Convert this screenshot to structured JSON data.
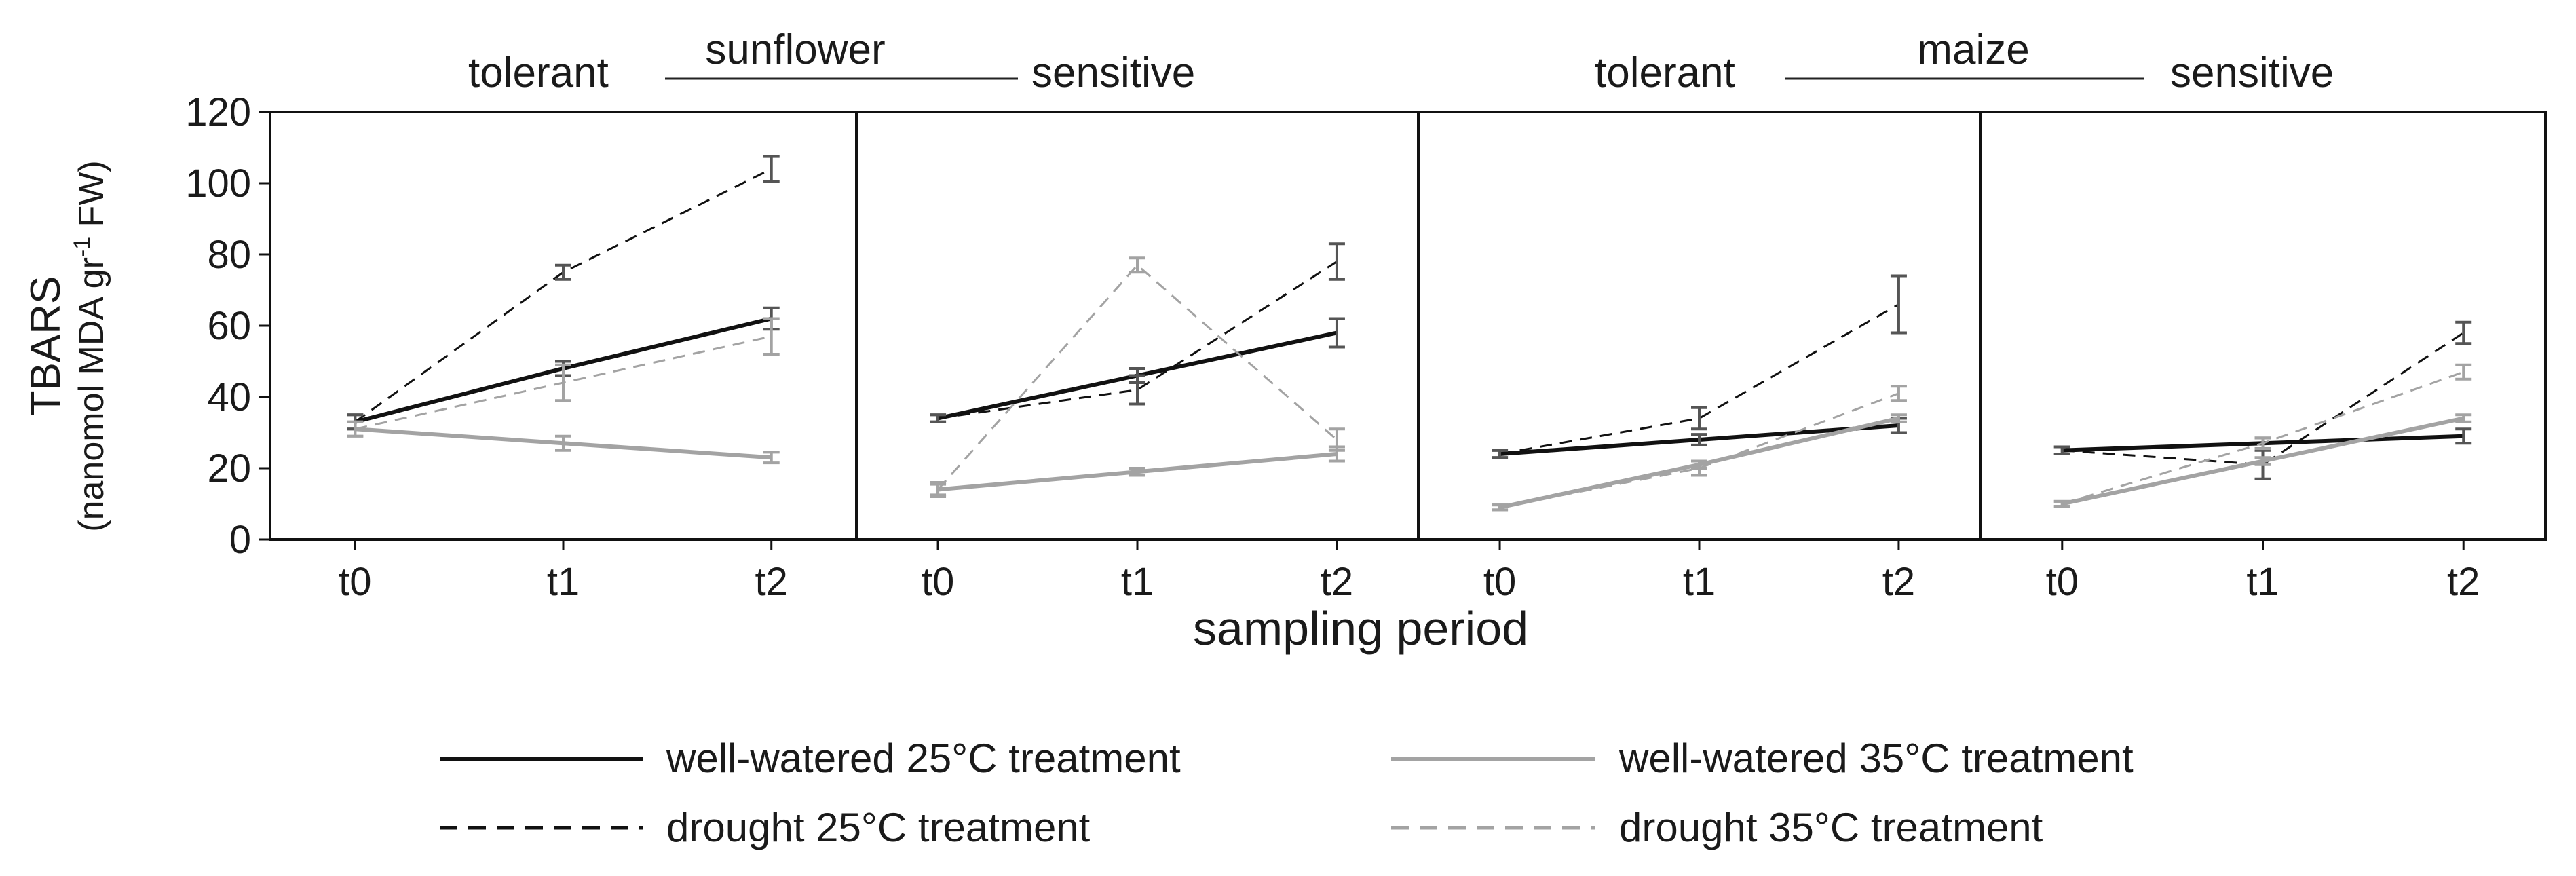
{
  "groups": [
    {
      "name": "sunflower",
      "left_label": "tolerant",
      "right_label": "sensitive"
    },
    {
      "name": "maize",
      "left_label": "tolerant",
      "right_label": "sensitive"
    }
  ],
  "ylabel_main": "TBARS",
  "ylabel_unit_a": "(nanomol MDA gr",
  "ylabel_unit_sup": "-1",
  "ylabel_unit_b": " FW)",
  "xlabel": "sampling period",
  "colors": {
    "black": "#111111",
    "gray": "#a3a3a3",
    "errbar_dark": "#555555",
    "errbar_light": "#a3a3a3"
  },
  "legend": [
    {
      "label": "well-watered 25°C treatment",
      "style": "solid",
      "color": "black"
    },
    {
      "label": "well-watered 35°C treatment",
      "style": "solid",
      "color": "gray"
    },
    {
      "label": "drought 25°C treatment",
      "style": "dashed",
      "color": "black"
    },
    {
      "label": "drought 35°C treatment",
      "style": "dashed",
      "color": "gray"
    }
  ],
  "chart_data": {
    "type": "line",
    "x": [
      "t0",
      "t1",
      "t2"
    ],
    "ylim": [
      0,
      120
    ],
    "yticks": [
      0,
      20,
      40,
      60,
      80,
      100,
      120
    ],
    "grid": false,
    "legend_placement": "bottom",
    "panels": [
      {
        "species": "sunflower",
        "tolerance": "tolerant",
        "series": [
          {
            "name": "well-watered 25°C treatment",
            "values": [
              33,
              48,
              62
            ],
            "err": [
              2,
              2,
              3
            ]
          },
          {
            "name": "drought 25°C treatment",
            "values": [
              33,
              75,
              104
            ],
            "err": [
              2,
              2,
              3.5
            ]
          },
          {
            "name": "well-watered 35°C treatment",
            "values": [
              31,
              27,
              23
            ],
            "err": [
              2,
              2,
              1.5
            ]
          },
          {
            "name": "drought 35°C treatment",
            "values": [
              31,
              44,
              57
            ],
            "err": [
              2,
              5,
              5
            ]
          }
        ]
      },
      {
        "species": "sunflower",
        "tolerance": "sensitive",
        "series": [
          {
            "name": "well-watered 25°C treatment",
            "values": [
              34,
              46,
              58
            ],
            "err": [
              1,
              2,
              4
            ]
          },
          {
            "name": "drought 25°C treatment",
            "values": [
              34,
              42,
              78
            ],
            "err": [
              1,
              4,
              5
            ]
          },
          {
            "name": "well-watered 35°C treatment",
            "values": [
              14,
              19,
              24
            ],
            "err": [
              1.5,
              1,
              2
            ]
          },
          {
            "name": "drought 35°C treatment",
            "values": [
              14,
              77,
              28
            ],
            "err": [
              2,
              2,
              3
            ]
          }
        ]
      },
      {
        "species": "maize",
        "tolerance": "tolerant",
        "series": [
          {
            "name": "well-watered 25°C treatment",
            "values": [
              24,
              28,
              32
            ],
            "err": [
              1,
              1.5,
              2
            ]
          },
          {
            "name": "drought 25°C treatment",
            "values": [
              24,
              34,
              66
            ],
            "err": [
              1,
              3,
              8
            ]
          },
          {
            "name": "well-watered 35°C treatment",
            "values": [
              9,
              21,
              34
            ],
            "err": [
              0.7,
              1,
              1
            ]
          },
          {
            "name": "drought 35°C treatment",
            "values": [
              9,
              20,
              41
            ],
            "err": [
              0.7,
              2,
              2
            ]
          }
        ]
      },
      {
        "species": "maize",
        "tolerance": "sensitive",
        "series": [
          {
            "name": "well-watered 25°C treatment",
            "values": [
              25,
              27,
              29
            ],
            "err": [
              1,
              1.5,
              2
            ]
          },
          {
            "name": "drought 25°C treatment",
            "values": [
              25,
              21,
              58
            ],
            "err": [
              1,
              4,
              3
            ]
          },
          {
            "name": "well-watered 35°C treatment",
            "values": [
              10,
              22,
              34
            ],
            "err": [
              0.7,
              1,
              1
            ]
          },
          {
            "name": "drought 35°C treatment",
            "values": [
              10,
              27,
              47
            ],
            "err": [
              0.7,
              1.5,
              2
            ]
          }
        ]
      }
    ]
  }
}
